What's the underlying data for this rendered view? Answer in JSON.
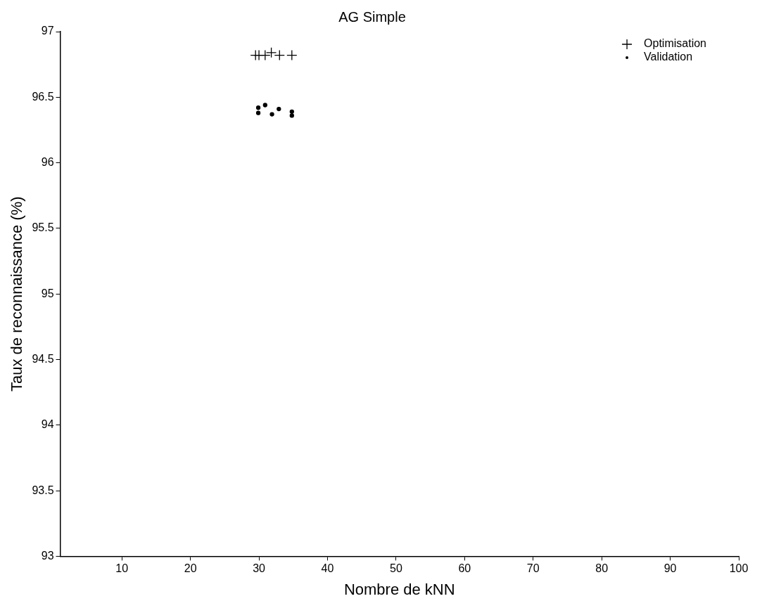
{
  "chart_data": {
    "type": "scatter",
    "title": "AG Simple",
    "xlabel": "Nombre de kNN",
    "ylabel": "Taux de reconnaissance (%)",
    "xlim": [
      1,
      100
    ],
    "xticks": [
      10,
      20,
      30,
      40,
      50,
      60,
      70,
      80,
      90,
      100
    ],
    "ylim": [
      93,
      97
    ],
    "yticks": [
      93,
      93.5,
      94,
      94.5,
      95,
      95.5,
      96,
      96.5,
      97
    ],
    "grid": false,
    "legend": "top right",
    "series": [
      {
        "name": "Optimisation",
        "color": "#000000",
        "marker": "cross",
        "x": [
          29.5,
          30.0,
          30.9,
          31.8,
          33.0,
          34.8
        ],
        "values": [
          96.82,
          96.82,
          96.82,
          96.84,
          96.82,
          96.82
        ]
      },
      {
        "name": "Validation",
        "color": "#000000",
        "marker": "circle",
        "x": [
          29.9,
          29.9,
          30.9,
          31.9,
          32.9,
          34.8,
          34.8
        ],
        "values": [
          96.42,
          96.38,
          96.44,
          96.37,
          96.41,
          96.39,
          96.36
        ]
      }
    ]
  }
}
